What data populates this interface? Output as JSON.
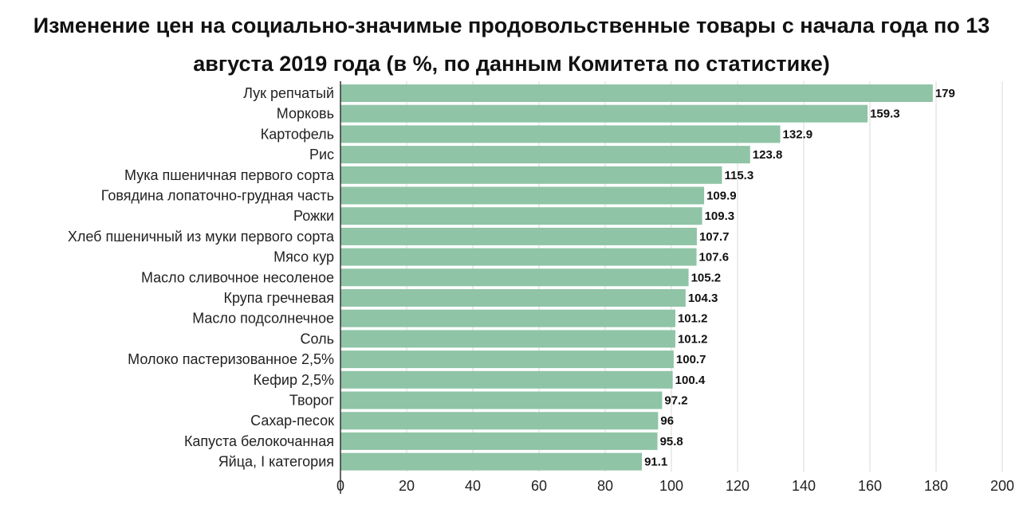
{
  "chart_data": {
    "type": "bar",
    "orientation": "horizontal",
    "title": "Изменение цен на социально-значимые продовольственные товары с начала года по 13 августа 2019 года (в %, по данным Комитета по статистике)",
    "categories": [
      "Лук репчатый",
      "Морковь",
      "Картофель",
      "Рис",
      "Мука пшеничная первого сорта",
      "Говядина лопаточно-грудная часть",
      "Рожки",
      "Хлеб пшеничный из муки первого сорта",
      "Мясо кур",
      "Масло сливочное несоленое",
      "Крупа гречневая",
      "Масло подсолнечное",
      "Соль",
      "Молоко пастеризованное 2,5%",
      "Кефир 2,5%",
      "Творог",
      "Сахар-песок",
      "Капуста белокочанная",
      "Яйца, I категория"
    ],
    "values": [
      179,
      159.3,
      132.9,
      123.8,
      115.3,
      109.9,
      109.3,
      107.7,
      107.6,
      105.2,
      104.3,
      101.2,
      101.2,
      100.7,
      100.4,
      97.2,
      96,
      95.8,
      91.1
    ],
    "value_labels": [
      "179",
      "159.3",
      "132.9",
      "123.8",
      "115.3",
      "109.9",
      "109.3",
      "107.7",
      "107.6",
      "105.2",
      "104.3",
      "101.2",
      "101.2",
      "100.7",
      "100.4",
      "97.2",
      "96",
      "95.8",
      "91.1"
    ],
    "xlim": [
      0,
      200
    ],
    "xticks": [
      "0",
      "20",
      "40",
      "60",
      "80",
      "100",
      "120",
      "140",
      "160",
      "180",
      "200"
    ],
    "grid": "vertical",
    "bar_color": "#8fc4a6",
    "grid_color": "#d9d9d9",
    "axis_color": "#333333"
  }
}
